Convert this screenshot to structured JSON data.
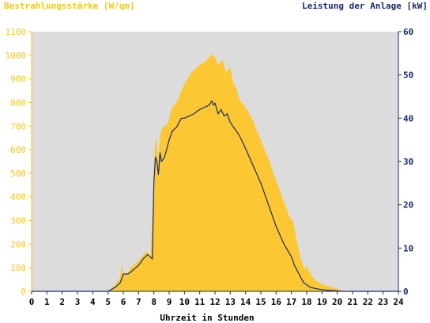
{
  "chart_data": {
    "type": "area",
    "y_left_label": "Bestrahlungsstärke [W/qm]",
    "y_right_label": "Leistung der Anlage [kW]",
    "xlabel": "Uhrzeit in Stunden",
    "xlim": [
      0,
      24
    ],
    "ylim_left": [
      0,
      1100
    ],
    "ylim_right": [
      0,
      60
    ],
    "x_ticks": [
      0,
      1,
      2,
      3,
      4,
      5,
      6,
      7,
      8,
      9,
      10,
      11,
      12,
      13,
      14,
      15,
      16,
      17,
      18,
      19,
      20,
      21,
      22,
      23,
      24
    ],
    "y_left_ticks": [
      0,
      100,
      200,
      300,
      400,
      500,
      600,
      700,
      800,
      900,
      1000,
      1100
    ],
    "y_right_ticks": [
      0,
      10,
      20,
      30,
      40,
      50,
      60
    ],
    "background_color": "#dcdcdc",
    "series": [
      {
        "name": "Bestrahlungsstärke",
        "axis": "left",
        "kind": "area",
        "color": "#fbc732",
        "x": [
          0,
          5,
          5.3,
          5.6,
          5.8,
          5.9,
          6.0,
          6.2,
          6.5,
          7.0,
          7.5,
          7.8,
          8.0,
          8.1,
          8.2,
          8.3,
          8.4,
          8.6,
          8.8,
          9.0,
          9.2,
          9.5,
          9.8,
          10.0,
          10.5,
          11.0,
          11.3,
          11.6,
          11.8,
          12.0,
          12.2,
          12.5,
          12.7,
          12.9,
          13.0,
          13.2,
          13.4,
          13.6,
          14.0,
          14.5,
          15.0,
          15.5,
          16.0,
          16.5,
          16.9,
          17.1,
          17.3,
          17.6,
          17.9,
          18.0,
          18.2,
          18.5,
          19.0,
          19.5,
          20.0,
          20.3,
          20.5,
          21,
          24
        ],
        "values": [
          0,
          0,
          15,
          40,
          60,
          110,
          80,
          70,
          100,
          130,
          170,
          150,
          500,
          650,
          620,
          560,
          660,
          700,
          700,
          730,
          780,
          800,
          850,
          880,
          930,
          960,
          970,
          990,
          1005,
          990,
          960,
          980,
          930,
          940,
          950,
          880,
          860,
          810,
          780,
          720,
          640,
          560,
          470,
          380,
          310,
          300,
          230,
          140,
          90,
          110,
          80,
          50,
          30,
          20,
          10,
          5,
          0,
          0,
          0
        ]
      },
      {
        "name": "Leistung der Anlage",
        "axis": "right",
        "kind": "line",
        "color": "#1a2a6c",
        "x": [
          0,
          5,
          5.5,
          5.8,
          6.0,
          6.3,
          6.5,
          7.0,
          7.3,
          7.6,
          7.9,
          8.0,
          8.1,
          8.2,
          8.3,
          8.4,
          8.5,
          8.7,
          9.0,
          9.2,
          9.5,
          9.8,
          10.0,
          10.3,
          10.6,
          11.0,
          11.3,
          11.6,
          11.8,
          11.9,
          12.0,
          12.2,
          12.4,
          12.6,
          12.8,
          13.0,
          13.2,
          13.4,
          13.6,
          14.0,
          14.5,
          15.0,
          15.5,
          16.0,
          16.5,
          17.0,
          17.2,
          17.5,
          17.8,
          18.0,
          18.2,
          18.5,
          19.0,
          19.5,
          20.0,
          20.3,
          20.5,
          21,
          24
        ],
        "values": [
          0,
          0,
          1,
          2,
          4,
          4,
          4.5,
          6,
          7.5,
          8.5,
          7.5,
          25,
          31,
          30,
          27,
          32,
          30,
          31,
          35,
          37,
          38,
          40,
          40,
          40.5,
          41,
          42,
          42.5,
          43,
          44,
          43,
          43.5,
          41,
          42,
          40.5,
          41,
          39,
          38,
          37,
          36,
          33,
          29,
          25,
          20,
          15,
          11,
          8,
          6,
          4,
          2,
          1.5,
          1,
          0.7,
          0.4,
          0.2,
          0.1,
          0,
          0,
          0,
          0
        ]
      }
    ]
  }
}
